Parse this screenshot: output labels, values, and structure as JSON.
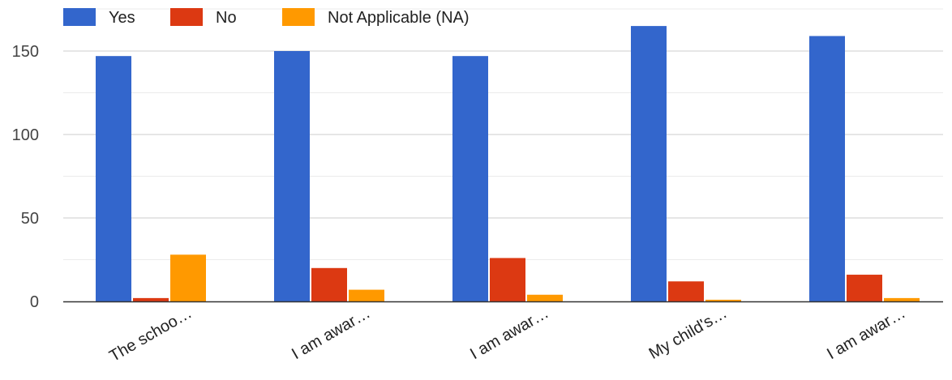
{
  "chart_data": {
    "type": "bar",
    "title": "",
    "xlabel": "",
    "ylabel": "",
    "categories": [
      "The schoo…",
      "I am awar…",
      "I am awar…",
      "My child's…",
      "I am awar…"
    ],
    "series": [
      {
        "name": "Yes",
        "color": "#3366cc",
        "values": [
          147,
          150,
          147,
          165,
          159
        ]
      },
      {
        "name": "No",
        "color": "#dc3912",
        "values": [
          2,
          20,
          26,
          12,
          16
        ]
      },
      {
        "name": "Not Applicable (NA)",
        "color": "#ff9900",
        "values": [
          28,
          7,
          4,
          1,
          2
        ]
      }
    ],
    "ylim": [
      0,
      165
    ],
    "yticks": [
      0,
      50,
      100,
      150
    ],
    "minor_gridlines": [
      25,
      75,
      125
    ],
    "grid": true,
    "legend_position": "top-left"
  }
}
